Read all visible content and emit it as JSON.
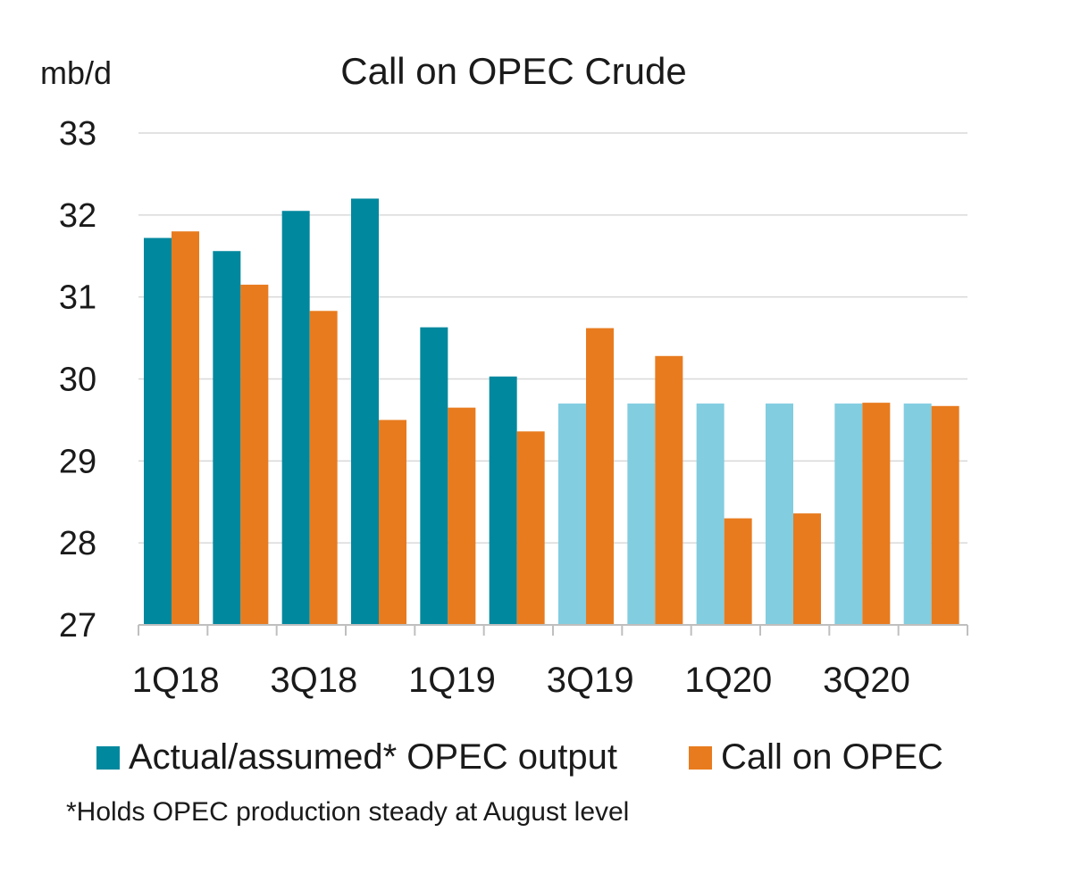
{
  "chart_data": {
    "type": "bar",
    "title": "Call on OPEC Crude",
    "ylabel": "mb/d",
    "xlabel": "",
    "ylim": [
      27,
      33
    ],
    "yticks": [
      "27",
      "28",
      "29",
      "30",
      "31",
      "32",
      "33"
    ],
    "grid": true,
    "legend_position": "bottom",
    "categories": [
      "1Q18",
      "2Q18",
      "3Q18",
      "4Q18",
      "1Q19",
      "2Q19",
      "3Q19",
      "4Q19",
      "1Q20",
      "2Q20",
      "3Q20",
      "4Q20"
    ],
    "x_tick_labels": [
      "1Q18",
      "",
      "3Q18",
      "",
      "1Q19",
      "",
      "3Q19",
      "",
      "1Q20",
      "",
      "3Q20",
      ""
    ],
    "series": [
      {
        "name": "Actual/assumed* OPEC output",
        "color": "#00889e",
        "values": [
          31.72,
          31.56,
          32.05,
          32.2,
          30.63,
          30.03,
          29.7,
          29.7,
          29.7,
          29.7,
          29.7,
          29.7
        ],
        "point_colors": [
          "#00889e",
          "#00889e",
          "#00889e",
          "#00889e",
          "#00889e",
          "#00889e",
          "#82cde0",
          "#82cde0",
          "#82cde0",
          "#82cde0",
          "#82cde0",
          "#82cde0"
        ]
      },
      {
        "name": "Call on OPEC",
        "color": "#e87b1e",
        "values": [
          31.8,
          null,
          30.83,
          29.5,
          29.65,
          29.36,
          30.62,
          30.28,
          28.3,
          28.36,
          29.71,
          29.67
        ],
        "values_full": [
          31.8,
          31.15,
          30.83,
          29.5,
          29.65,
          29.36,
          30.62,
          30.28,
          28.3,
          28.36,
          29.71,
          29.67
        ]
      }
    ],
    "footnote": "*Holds OPEC production steady at August level"
  }
}
